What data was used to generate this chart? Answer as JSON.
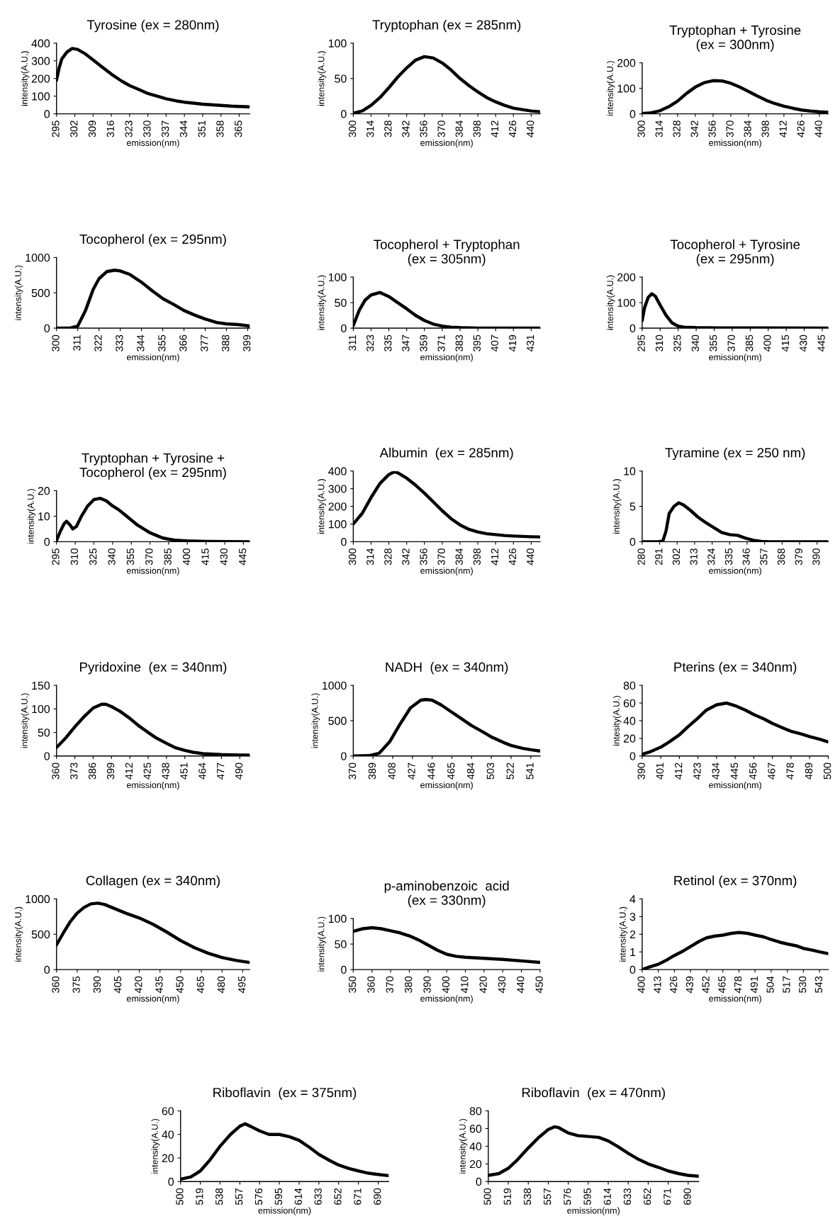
{
  "chart_data": [
    {
      "type": "line",
      "title": "Tyrosine (ex = 280nm)",
      "xlabel": "emission(nm)",
      "ylabel": "intensity(A.U.)",
      "color": "#000000",
      "xlim": [
        295,
        369
      ],
      "xticks": [
        295,
        302,
        309,
        316,
        323,
        330,
        337,
        344,
        351,
        358,
        365
      ],
      "ylim": [
        0,
        400
      ],
      "yticks": [
        0,
        100,
        200,
        300,
        400
      ],
      "x": [
        295,
        296,
        297,
        299,
        301,
        303,
        306,
        309,
        312,
        316,
        320,
        323,
        327,
        330,
        334,
        337,
        341,
        344,
        348,
        351,
        355,
        358,
        362,
        365,
        369
      ],
      "values": [
        190,
        260,
        310,
        350,
        370,
        365,
        340,
        305,
        270,
        225,
        185,
        160,
        135,
        115,
        98,
        85,
        73,
        66,
        60,
        55,
        51,
        48,
        44,
        42,
        40
      ]
    },
    {
      "type": "line",
      "title": "Tryptophan (ex = 285nm)",
      "xlabel": "emission(nm)",
      "ylabel": "intensity(A.U.)",
      "color": "#000000",
      "xlim": [
        300,
        447
      ],
      "xticks": [
        300,
        314,
        328,
        342,
        356,
        370,
        384,
        398,
        412,
        426,
        440
      ],
      "ylim": [
        0,
        100
      ],
      "yticks": [
        0,
        50,
        100
      ],
      "x": [
        300,
        307,
        314,
        321,
        328,
        335,
        342,
        349,
        356,
        363,
        370,
        377,
        384,
        391,
        398,
        405,
        412,
        419,
        426,
        433,
        440,
        447
      ],
      "values": [
        1,
        4,
        12,
        23,
        37,
        52,
        65,
        76,
        81,
        79,
        72,
        62,
        50,
        40,
        31,
        23,
        17,
        12,
        8,
        6,
        4,
        3
      ]
    },
    {
      "type": "line",
      "title": "Tryptophan + Tyrosine\n(ex = 300nm)",
      "xlabel": "emission(nm)",
      "ylabel": "intensity(A.U.)",
      "color": "#000000",
      "xlim": [
        300,
        447
      ],
      "xticks": [
        300,
        314,
        328,
        342,
        356,
        370,
        384,
        398,
        412,
        426,
        440
      ],
      "ylim": [
        0,
        200
      ],
      "yticks": [
        0,
        100,
        200
      ],
      "x": [
        300,
        307,
        314,
        321,
        328,
        335,
        342,
        349,
        356,
        363,
        370,
        377,
        384,
        391,
        398,
        405,
        412,
        419,
        426,
        433,
        440,
        447
      ],
      "values": [
        1,
        4,
        12,
        28,
        50,
        80,
        105,
        122,
        130,
        129,
        120,
        105,
        88,
        70,
        53,
        40,
        30,
        22,
        15,
        11,
        8,
        6
      ]
    },
    {
      "type": "line",
      "title": "Tocopherol (ex = 295nm)",
      "xlabel": "emission(nm)",
      "ylabel": "intensity(A.U.)",
      "color": "#000000",
      "xlim": [
        300,
        400
      ],
      "xticks": [
        300,
        311,
        322,
        333,
        344,
        355,
        366,
        377,
        388,
        399
      ],
      "ylim": [
        0,
        1000
      ],
      "yticks": [
        0,
        500,
        1000
      ],
      "x": [
        300,
        307,
        311,
        315,
        319,
        322,
        326,
        330,
        333,
        338,
        344,
        350,
        355,
        361,
        366,
        372,
        377,
        383,
        388,
        394,
        400
      ],
      "values": [
        0,
        2,
        30,
        250,
        550,
        700,
        800,
        820,
        810,
        760,
        650,
        520,
        420,
        330,
        250,
        180,
        130,
        80,
        60,
        50,
        30
      ]
    },
    {
      "type": "line",
      "title": "Tocopherol + Tryptophan\n(ex = 305nm)",
      "xlabel": "emission(nm)",
      "ylabel": "intensity(A.U.)",
      "color": "#000000",
      "xlim": [
        311,
        437
      ],
      "xticks": [
        311,
        323,
        335,
        347,
        359,
        371,
        383,
        395,
        407,
        419,
        431
      ],
      "ylim": [
        0,
        100
      ],
      "yticks": [
        0,
        50,
        100
      ],
      "x": [
        311,
        315,
        319,
        323,
        329,
        335,
        341,
        347,
        353,
        359,
        365,
        371,
        377,
        383,
        395,
        410,
        437
      ],
      "values": [
        5,
        35,
        55,
        65,
        70,
        62,
        50,
        38,
        25,
        15,
        8,
        4,
        2,
        1,
        0,
        0,
        0
      ]
    },
    {
      "type": "line",
      "title": "Tocopherol + Tyrosine\n(ex = 295nm)",
      "xlabel": "emission(nm)",
      "ylabel": "intensity(A.U.)",
      "color": "#000000",
      "xlim": [
        295,
        450
      ],
      "xticks": [
        295,
        310,
        325,
        340,
        355,
        370,
        385,
        400,
        415,
        430,
        445
      ],
      "ylim": [
        0,
        200
      ],
      "yticks": [
        0,
        100,
        200
      ],
      "x": [
        295,
        297,
        300,
        303,
        306,
        310,
        315,
        320,
        325,
        330,
        340,
        360,
        400,
        450
      ],
      "values": [
        30,
        80,
        120,
        135,
        125,
        90,
        50,
        20,
        8,
        4,
        2,
        1,
        1,
        0
      ]
    },
    {
      "type": "line",
      "title": "Tryptophan + Tyrosine +\nTocopherol (ex = 295nm)",
      "xlabel": "emission(nm)",
      "ylabel": "intensity(A.U.)",
      "color": "#000000",
      "xlim": [
        295,
        450
      ],
      "xticks": [
        295,
        310,
        325,
        340,
        355,
        370,
        385,
        400,
        415,
        430,
        445
      ],
      "ylim": [
        0,
        20
      ],
      "yticks": [
        0,
        10,
        20
      ],
      "x": [
        295,
        298,
        301,
        303,
        306,
        308,
        311,
        315,
        320,
        325,
        330,
        335,
        340,
        345,
        350,
        355,
        360,
        365,
        370,
        375,
        380,
        385,
        390,
        400,
        415,
        450
      ],
      "values": [
        0.5,
        4,
        7,
        8,
        6.5,
        5,
        6,
        10,
        14,
        16.5,
        17,
        16,
        14,
        12.5,
        10.5,
        8.5,
        6.5,
        5,
        3.5,
        2.5,
        1.5,
        1,
        0.6,
        0.3,
        0.1,
        0
      ]
    },
    {
      "type": "line",
      "title": "Albumin  (ex = 285nm)",
      "xlabel": "emission(nm)",
      "ylabel": "intensity(A.U.)",
      "color": "#000000",
      "xlim": [
        300,
        447
      ],
      "xticks": [
        300,
        314,
        328,
        342,
        356,
        370,
        384,
        398,
        412,
        426,
        440
      ],
      "ylim": [
        0,
        400
      ],
      "yticks": [
        0,
        100,
        200,
        300,
        400
      ],
      "x": [
        300,
        307,
        314,
        321,
        328,
        332,
        335,
        342,
        349,
        356,
        363,
        370,
        377,
        384,
        391,
        398,
        405,
        412,
        419,
        426,
        433,
        440,
        447
      ],
      "values": [
        100,
        160,
        250,
        330,
        380,
        395,
        390,
        360,
        320,
        275,
        225,
        175,
        130,
        95,
        70,
        55,
        45,
        40,
        35,
        32,
        30,
        28,
        27
      ]
    },
    {
      "type": "line",
      "title": "Tyramine (ex = 250 nm)",
      "xlabel": "emission(nm)",
      "ylabel": "intensity(A.U.)",
      "color": "#000000",
      "xlim": [
        280,
        397
      ],
      "xticks": [
        280,
        291,
        302,
        313,
        324,
        335,
        346,
        357,
        368,
        379,
        390
      ],
      "ylim": [
        0,
        10
      ],
      "yticks": [
        0,
        5,
        10
      ],
      "x": [
        280,
        290,
        293,
        295,
        297,
        300,
        303,
        306,
        310,
        315,
        320,
        325,
        330,
        335,
        340,
        345,
        350,
        355,
        360,
        397
      ],
      "values": [
        0,
        0,
        0.1,
        1.5,
        4,
        5,
        5.5,
        5.2,
        4.5,
        3.5,
        2.7,
        2,
        1.3,
        1,
        0.9,
        0.5,
        0.2,
        0.05,
        0,
        0
      ]
    },
    {
      "type": "line",
      "title": "Pyridoxine  (ex = 340nm)",
      "xlabel": "emission(nm)",
      "ylabel": "intensity(A.U.)",
      "color": "#000000",
      "xlim": [
        360,
        497
      ],
      "xticks": [
        360,
        373,
        386,
        399,
        412,
        425,
        438,
        451,
        464,
        477,
        490
      ],
      "ylim": [
        0,
        150
      ],
      "yticks": [
        0,
        50,
        100,
        150
      ],
      "x": [
        360,
        367,
        373,
        380,
        386,
        392,
        395,
        399,
        405,
        412,
        418,
        425,
        431,
        438,
        444,
        451,
        457,
        464,
        477,
        490,
        497
      ],
      "values": [
        18,
        40,
        62,
        85,
        102,
        110,
        110,
        105,
        95,
        80,
        65,
        50,
        38,
        27,
        18,
        12,
        8,
        5,
        3,
        2,
        2
      ]
    },
    {
      "type": "line",
      "title": "NADH  (ex = 340nm)",
      "xlabel": "emission(nm)",
      "ylabel": "intensity(A.U.)",
      "color": "#000000",
      "xlim": [
        370,
        550
      ],
      "xticks": [
        370,
        389,
        408,
        427,
        446,
        465,
        484,
        503,
        522,
        541
      ],
      "ylim": [
        0,
        1000
      ],
      "yticks": [
        0,
        500,
        1000
      ],
      "x": [
        370,
        385,
        395,
        405,
        415,
        425,
        435,
        440,
        446,
        455,
        465,
        475,
        484,
        495,
        503,
        515,
        522,
        533,
        541,
        550
      ],
      "values": [
        0,
        5,
        40,
        200,
        450,
        680,
        790,
        800,
        790,
        720,
        620,
        520,
        430,
        340,
        270,
        190,
        150,
        110,
        90,
        70
      ]
    },
    {
      "type": "line",
      "title": "Pterins (ex = 340nm)",
      "xlabel": "emission(nm)",
      "ylabel": "intesity(A.U.)",
      "color": "#000000",
      "xlim": [
        390,
        500
      ],
      "xticks": [
        390,
        401,
        412,
        423,
        434,
        445,
        456,
        467,
        478,
        489,
        500
      ],
      "ylim": [
        0,
        80
      ],
      "yticks": [
        0,
        20,
        40,
        60,
        80
      ],
      "x": [
        390,
        395,
        401,
        406,
        412,
        417,
        423,
        428,
        434,
        440,
        445,
        451,
        456,
        462,
        467,
        473,
        478,
        484,
        489,
        495,
        500
      ],
      "values": [
        2,
        5,
        10,
        16,
        24,
        33,
        43,
        52,
        58,
        60,
        57,
        52,
        47,
        42,
        37,
        32,
        28,
        25,
        22,
        19,
        16
      ]
    },
    {
      "type": "line",
      "title": "Collagen (ex = 340nm)",
      "xlabel": "emission(nm)",
      "ylabel": "intensity(A.U.)",
      "color": "#000000",
      "xlim": [
        360,
        500
      ],
      "xticks": [
        360,
        375,
        390,
        405,
        420,
        435,
        450,
        465,
        480,
        495
      ],
      "ylim": [
        0,
        1000
      ],
      "yticks": [
        0,
        500,
        1000
      ],
      "x": [
        360,
        365,
        370,
        375,
        380,
        385,
        390,
        395,
        400,
        410,
        420,
        430,
        440,
        450,
        460,
        470,
        480,
        490,
        500
      ],
      "values": [
        350,
        520,
        680,
        800,
        880,
        930,
        940,
        920,
        880,
        800,
        730,
        640,
        530,
        410,
        310,
        230,
        170,
        130,
        100
      ]
    },
    {
      "type": "line",
      "title": "p-aminobenzoic  acid\n(ex = 330nm)",
      "xlabel": "emission(nm)",
      "ylabel": "intensity(A.U.)",
      "color": "#000000",
      "xlim": [
        350,
        450
      ],
      "xticks": [
        350,
        360,
        370,
        380,
        390,
        400,
        410,
        420,
        430,
        440,
        450
      ],
      "ylim": [
        0,
        100
      ],
      "yticks": [
        0,
        50,
        100
      ],
      "x": [
        350,
        355,
        360,
        365,
        370,
        375,
        380,
        385,
        390,
        395,
        400,
        405,
        410,
        420,
        430,
        440,
        450
      ],
      "values": [
        75,
        80,
        82,
        80,
        76,
        72,
        66,
        58,
        48,
        38,
        30,
        26,
        24,
        22,
        20,
        17,
        14
      ]
    },
    {
      "type": "line",
      "title": "Retinol (ex = 370nm)",
      "xlabel": "emission(nm)",
      "ylabel": "intensity(A.U.)",
      "color": "#000000",
      "xlim": [
        400,
        550
      ],
      "xticks": [
        400,
        413,
        426,
        439,
        452,
        465,
        478,
        491,
        504,
        517,
        530,
        543
      ],
      "ylim": [
        0,
        4
      ],
      "yticks": [
        0,
        1,
        2,
        3,
        4
      ],
      "x": [
        400,
        406,
        413,
        420,
        426,
        433,
        439,
        446,
        452,
        459,
        465,
        472,
        478,
        485,
        491,
        498,
        504,
        511,
        517,
        524,
        530,
        537,
        543,
        550
      ],
      "values": [
        0,
        0.15,
        0.3,
        0.55,
        0.8,
        1.05,
        1.3,
        1.6,
        1.8,
        1.9,
        1.95,
        2.05,
        2.1,
        2.05,
        1.95,
        1.85,
        1.7,
        1.55,
        1.45,
        1.35,
        1.2,
        1.1,
        1.0,
        0.9
      ]
    },
    {
      "type": "line",
      "title": "Riboflavin  (ex = 375nm)",
      "xlabel": "emission(nm)",
      "ylabel": "intensity(A.U.)",
      "color": "#000000",
      "xlim": [
        500,
        700
      ],
      "xticks": [
        500,
        519,
        538,
        557,
        576,
        595,
        614,
        633,
        652,
        671,
        690
      ],
      "ylim": [
        0,
        60
      ],
      "yticks": [
        0,
        20,
        40,
        60
      ],
      "x": [
        500,
        510,
        519,
        528,
        538,
        548,
        557,
        562,
        567,
        576,
        585,
        595,
        605,
        614,
        624,
        633,
        643,
        652,
        662,
        671,
        681,
        690,
        700
      ],
      "values": [
        2,
        4,
        9,
        18,
        30,
        40,
        47,
        49,
        47,
        43,
        40,
        40,
        38,
        35,
        29,
        23,
        18,
        14,
        11,
        9,
        7,
        6,
        5
      ]
    },
    {
      "type": "line",
      "title": "Riboflavin  (ex = 470nm)",
      "xlabel": "emission(nm)",
      "ylabel": "intensity(A.U.)",
      "color": "#000000",
      "xlim": [
        500,
        700
      ],
      "xticks": [
        500,
        519,
        538,
        557,
        576,
        595,
        614,
        633,
        652,
        671,
        690
      ],
      "ylim": [
        0,
        80
      ],
      "yticks": [
        0,
        20,
        40,
        60,
        80
      ],
      "x": [
        500,
        510,
        519,
        528,
        538,
        548,
        557,
        563,
        567,
        576,
        585,
        595,
        605,
        614,
        624,
        633,
        643,
        652,
        662,
        671,
        681,
        690,
        700
      ],
      "values": [
        7,
        9,
        15,
        25,
        38,
        50,
        59,
        62,
        61,
        55,
        52,
        51,
        50,
        46,
        39,
        32,
        25,
        20,
        16,
        12,
        9,
        7,
        6
      ]
    }
  ]
}
